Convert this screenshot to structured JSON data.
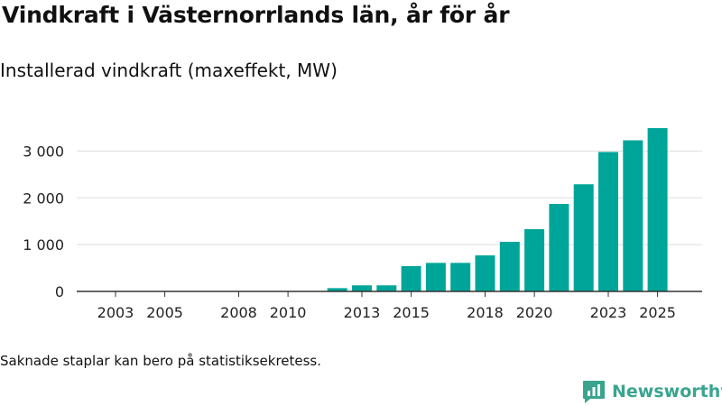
{
  "title": "Vindkraft i Västernorrlands län, år för år",
  "subtitle": "Installerad vindkraft (maxeffekt, MW)",
  "footnote": "Saknade staplar kan bero på statistiksekretess.",
  "brand": {
    "name": "Newsworthy",
    "color": "#3aa48f",
    "icon": "newsworthy-chart-icon"
  },
  "colors": {
    "bar": "#00a599",
    "grid": "#dddddd",
    "axis": "#333333",
    "text": "#222222"
  },
  "chart_data": {
    "type": "bar",
    "title": "Installerad vindkraft (maxeffekt, MW)",
    "xlabel": "",
    "ylabel": "",
    "ylim": [
      0,
      3500
    ],
    "yticks": [
      0,
      1000,
      2000,
      3000
    ],
    "ytick_labels": [
      "0",
      "1 000",
      "2 000",
      "3 000"
    ],
    "xtick_labels": [
      "2003",
      "2005",
      "2008",
      "2010",
      "2013",
      "2015",
      "2018",
      "2020",
      "2023",
      "2025"
    ],
    "grid": true,
    "categories": [
      2003,
      2004,
      2005,
      2006,
      2007,
      2008,
      2009,
      2010,
      2011,
      2012,
      2013,
      2014,
      2015,
      2016,
      2017,
      2018,
      2019,
      2020,
      2021,
      2022,
      2023,
      2024,
      2025
    ],
    "values": [
      0,
      0,
      0,
      0,
      0,
      0,
      0,
      0,
      0,
      70,
      130,
      130,
      540,
      610,
      610,
      770,
      1060,
      1330,
      1870,
      2290,
      2980,
      3230,
      3490
    ]
  }
}
